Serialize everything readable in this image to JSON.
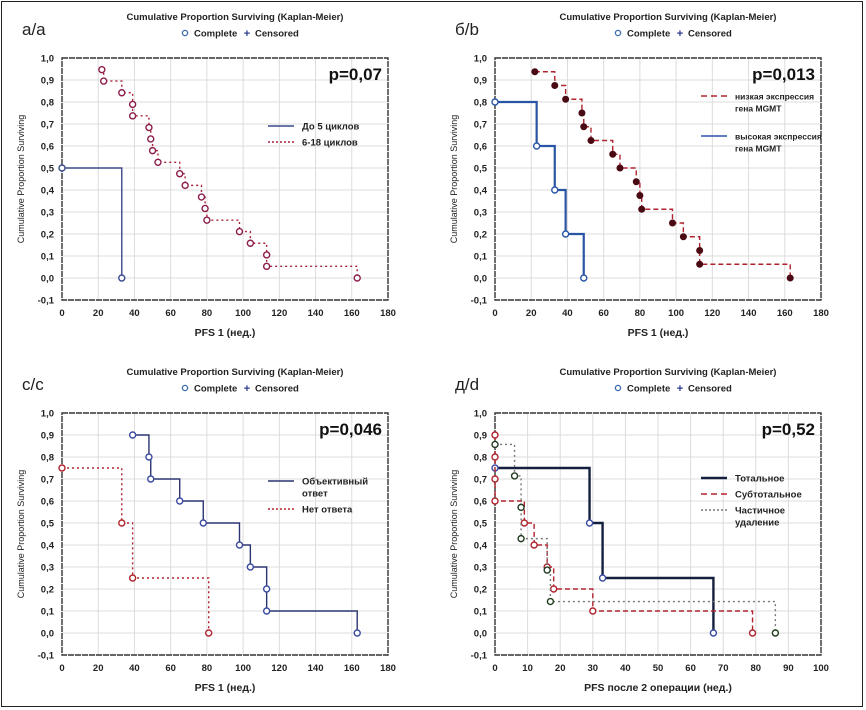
{
  "chart_data": [
    {
      "type": "line",
      "panel_label": "а/a",
      "title": "Cumulative Proportion Surviving (Kaplan-Meier)",
      "marker_legend": [
        {
          "label": "Complete",
          "marker": "circle"
        },
        {
          "label": "Censored",
          "marker": "plus"
        }
      ],
      "p_value": "p=0,07",
      "xlabel": "PFS 1 (нед.)",
      "ylabel": "Cumulative Proportion Surviving",
      "xlim": [
        0,
        180
      ],
      "ylim": [
        -0.1,
        1.0
      ],
      "xticks": [
        "0",
        "20",
        "40",
        "60",
        "80",
        "100",
        "120",
        "140",
        "160",
        "180"
      ],
      "yticks": [
        "-0,1",
        "0,0",
        "0,1",
        "0,2",
        "0,3",
        "0,4",
        "0,5",
        "0,6",
        "0,7",
        "0,8",
        "0,9",
        "1,0"
      ],
      "grid": true,
      "legend_position": "right",
      "series": [
        {
          "name": "До 5 циклов",
          "style": "solid",
          "color": "#3a4a8c",
          "marker_color": "#3a4a8c",
          "marker": "open",
          "x": [
            0,
            33
          ],
          "y": [
            0.5,
            0.0
          ]
        },
        {
          "name": "6-18 циклов",
          "style": "dotted",
          "color": "#a8243a",
          "marker_color": "#8c1d4a",
          "marker": "open",
          "x": [
            22,
            23,
            33,
            39,
            39,
            48,
            49,
            50,
            53,
            65,
            68,
            77,
            79,
            80,
            98,
            104,
            113,
            113,
            163
          ],
          "y": [
            0.947,
            0.895,
            0.842,
            0.789,
            0.737,
            0.684,
            0.632,
            0.579,
            0.526,
            0.474,
            0.421,
            0.368,
            0.316,
            0.263,
            0.211,
            0.158,
            0.105,
            0.053,
            0.0
          ]
        }
      ]
    },
    {
      "type": "line",
      "panel_label": "б/b",
      "title": "Cumulative Proportion Surviving (Kaplan-Meier)",
      "marker_legend": [
        {
          "label": "Complete",
          "marker": "circle"
        },
        {
          "label": "Censored",
          "marker": "plus"
        }
      ],
      "p_value": "p=0,013",
      "xlabel": "PFS 1 (нед.)",
      "ylabel": "Cumulative Proportion Surviving",
      "xlim": [
        0,
        180
      ],
      "ylim": [
        -0.1,
        1.0
      ],
      "xticks": [
        "0",
        "20",
        "40",
        "60",
        "80",
        "100",
        "120",
        "140",
        "160",
        "180"
      ],
      "yticks": [
        "-0,1",
        "0,0",
        "0,1",
        "0,2",
        "0,3",
        "0,4",
        "0,5",
        "0,6",
        "0,7",
        "0,8",
        "0,9",
        "1,0"
      ],
      "grid": true,
      "legend_position": "right",
      "series": [
        {
          "name": "низкая экспрессия гена MGMT",
          "style": "dashed",
          "color": "#b0232e",
          "marker_color": "#4a0a14",
          "marker": "filled",
          "x": [
            22,
            33,
            39,
            48,
            49,
            53,
            65,
            69,
            78,
            80,
            81,
            98,
            104,
            113,
            113,
            163
          ],
          "y": [
            0.9375,
            0.875,
            0.8125,
            0.75,
            0.6875,
            0.625,
            0.5625,
            0.5,
            0.4375,
            0.375,
            0.3125,
            0.25,
            0.1875,
            0.125,
            0.0625,
            0.0
          ]
        },
        {
          "name": "высокая экспрессия гена MGMT",
          "style": "solid",
          "color": "#2a55a5",
          "marker_color": "#2a55a5",
          "marker": "open",
          "x": [
            0,
            23,
            33,
            39,
            49
          ],
          "y": [
            0.8,
            0.6,
            0.4,
            0.2,
            0.0
          ]
        }
      ]
    },
    {
      "type": "line",
      "panel_label": "с/c",
      "title": "Cumulative Proportion Surviving (Kaplan-Meier)",
      "marker_legend": [
        {
          "label": "Complete",
          "marker": "circle"
        },
        {
          "label": "Censored",
          "marker": "plus"
        }
      ],
      "p_value": "p=0,046",
      "xlabel": "PFS 1 (нед.)",
      "ylabel": "Cumulative Proportion Surviving",
      "xlim": [
        0,
        180
      ],
      "ylim": [
        -0.1,
        1.0
      ],
      "xticks": [
        "0",
        "20",
        "40",
        "60",
        "80",
        "100",
        "120",
        "140",
        "160",
        "180"
      ],
      "yticks": [
        "-0,1",
        "0,0",
        "0,1",
        "0,2",
        "0,3",
        "0,4",
        "0,5",
        "0,6",
        "0,7",
        "0,8",
        "0,9",
        "1,0"
      ],
      "grid": true,
      "legend_position": "right",
      "series": [
        {
          "name": "Объективный ответ",
          "style": "solid",
          "color": "#2c3570",
          "marker_color": "#3a4aa0",
          "marker": "open",
          "x": [
            39,
            48,
            49,
            65,
            78,
            98,
            104,
            113,
            113,
            163
          ],
          "y": [
            0.9,
            0.8,
            0.7,
            0.6,
            0.5,
            0.4,
            0.3,
            0.2,
            0.1,
            0.0
          ]
        },
        {
          "name": "Нет ответа",
          "style": "dotted",
          "color": "#b0232e",
          "marker_color": "#b0232e",
          "marker": "open",
          "x": [
            0,
            33,
            39,
            81
          ],
          "y": [
            0.75,
            0.5,
            0.25,
            0.0
          ]
        }
      ]
    },
    {
      "type": "line",
      "panel_label": "д/d",
      "title": "Cumulative Proportion Surviving (Kaplan-Meier)",
      "marker_legend": [
        {
          "label": "Complete",
          "marker": "circle"
        },
        {
          "label": "Censored",
          "marker": "plus"
        }
      ],
      "p_value": "p=0,52",
      "xlabel": "PFS после 2 операции (нед.)",
      "ylabel": "Cumulative Proportion Surviving",
      "xlim": [
        0,
        100
      ],
      "ylim": [
        -0.1,
        1.0
      ],
      "xticks": [
        "0",
        "10",
        "20",
        "30",
        "40",
        "50",
        "60",
        "70",
        "80",
        "90",
        "100"
      ],
      "yticks": [
        "-0,1",
        "0,0",
        "0,1",
        "0,2",
        "0,3",
        "0,4",
        "0,5",
        "0,6",
        "0,7",
        "0,8",
        "0,9",
        "1,0"
      ],
      "grid": true,
      "legend_position": "right",
      "series": [
        {
          "name": "Тотальное",
          "style": "solid-thick",
          "color": "#15203f",
          "marker_color": "#3a4aa0",
          "marker": "open",
          "x": [
            0,
            29,
            33,
            67
          ],
          "y": [
            0.75,
            0.5,
            0.25,
            0.0
          ]
        },
        {
          "name": "Субтотальное",
          "style": "dashed",
          "color": "#b0232e",
          "marker_color": "#b0232e",
          "marker": "open",
          "x": [
            0,
            0,
            0,
            0,
            9,
            12,
            16,
            18,
            30,
            79
          ],
          "y": [
            0.9,
            0.8,
            0.7,
            0.6,
            0.5,
            0.4,
            0.3,
            0.2,
            0.1,
            0.0
          ]
        },
        {
          "name": "Частичное удаление",
          "style": "dotted",
          "color": "#777777",
          "marker_color": "#1f3a1f",
          "marker": "open",
          "x": [
            0,
            6,
            8,
            8,
            16,
            17,
            86
          ],
          "y": [
            0.857,
            0.714,
            0.571,
            0.429,
            0.286,
            0.143,
            0.0
          ]
        }
      ]
    }
  ]
}
